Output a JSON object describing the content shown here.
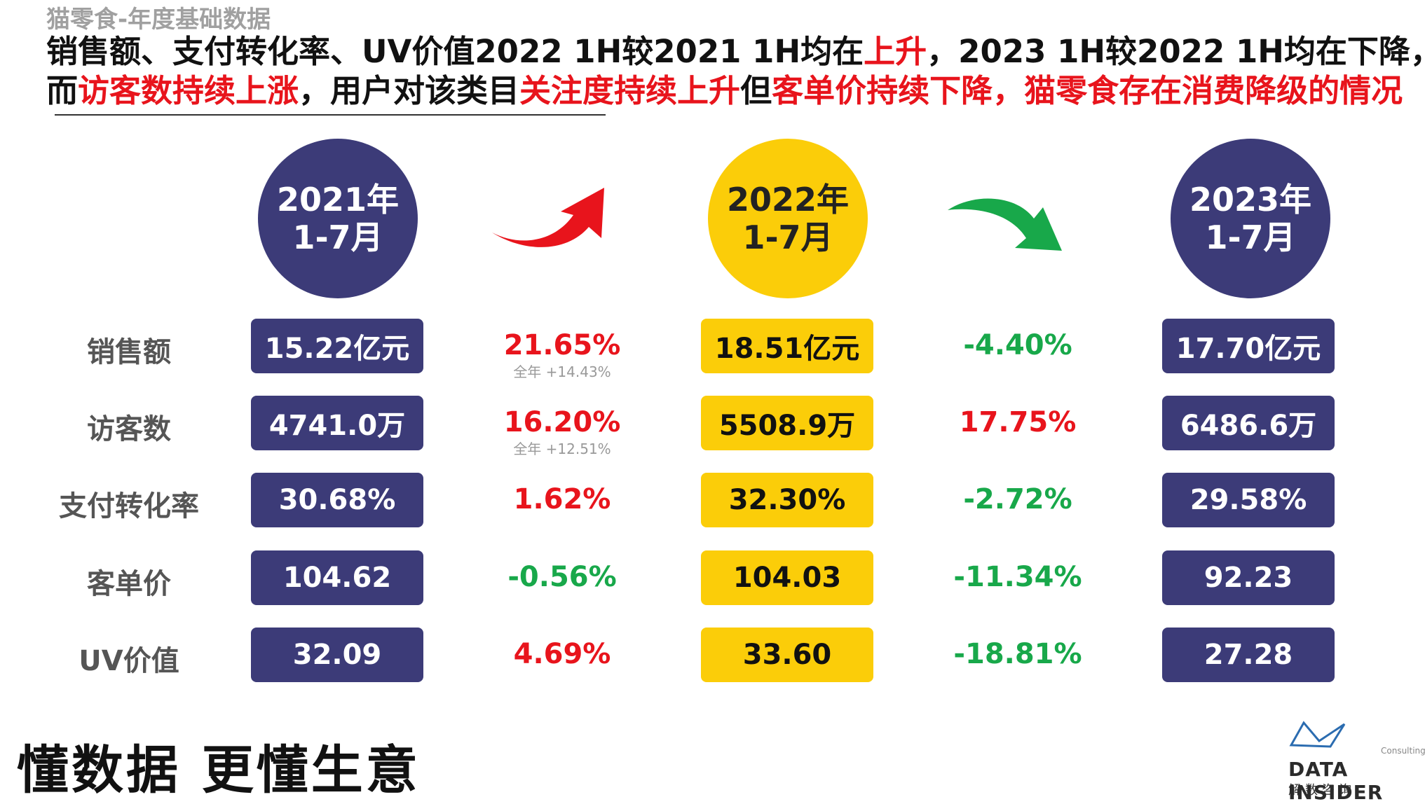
{
  "header": {
    "subtitle": "猫零食-年度基础数据",
    "headline_line1": [
      {
        "text": "销售额、支付转化率、UV价值2022 1H较2021 1H均在",
        "red": false
      },
      {
        "text": "上升",
        "red": true
      },
      {
        "text": "，2023 1H较2022 1H均在下降，",
        "red": false
      }
    ],
    "headline_line2": [
      {
        "text": "而",
        "red": false
      },
      {
        "text": "访客数持续上涨",
        "red": true
      },
      {
        "text": "，用户对该类目",
        "red": false
      },
      {
        "text": "关注度持续上升",
        "red": true
      },
      {
        "text": "但",
        "red": false
      },
      {
        "text": "客单价持续下降，猫零食存在消费降级的情况",
        "red": true
      }
    ]
  },
  "periods": [
    {
      "line1": "2021年",
      "line2": "1-7月"
    },
    {
      "line1": "2022年",
      "line2": "1-7月"
    },
    {
      "line1": "2023年",
      "line2": "1-7月"
    }
  ],
  "arrows": {
    "first": "red-up-arrow-icon",
    "second": "green-down-arrow-icon"
  },
  "colors": {
    "navy": "#3c3b78",
    "yellow": "#fbcd09",
    "red": "#e8141c",
    "green": "#18a84a"
  },
  "rows": [
    {
      "label": "销售额",
      "v2021": "15.22亿元",
      "c1": "21.65%",
      "c1_dir": "up",
      "c1_note": "全年 +14.43%",
      "v2022": "18.51亿元",
      "c2": "-4.40%",
      "c2_dir": "down",
      "v2023": "17.70亿元"
    },
    {
      "label": "访客数",
      "v2021": "4741.0万",
      "c1": "16.20%",
      "c1_dir": "up",
      "c1_note": "全年 +12.51%",
      "v2022": "5508.9万",
      "c2": "17.75%",
      "c2_dir": "up",
      "v2023": "6486.6万"
    },
    {
      "label": "支付转化率",
      "v2021": "30.68%",
      "c1": "1.62%",
      "c1_dir": "up",
      "c1_note": "",
      "v2022": "32.30%",
      "c2": "-2.72%",
      "c2_dir": "down",
      "v2023": "29.58%"
    },
    {
      "label": "客单价",
      "v2021": "104.62",
      "c1": "-0.56%",
      "c1_dir": "down",
      "c1_note": "",
      "v2022": "104.03",
      "c2": "-11.34%",
      "c2_dir": "down",
      "v2023": "92.23"
    },
    {
      "label": "UV价值",
      "v2021": "32.09",
      "c1": "4.69%",
      "c1_dir": "up",
      "c1_note": "",
      "v2022": "33.60",
      "c2": "-18.81%",
      "c2_dir": "down",
      "v2023": "27.28"
    }
  ],
  "footer": {
    "slogan": "懂数据 更懂生意",
    "logo_name": "DATA INSIDER",
    "logo_sub": "解数咨询",
    "logo_consulting": "Consulting"
  }
}
